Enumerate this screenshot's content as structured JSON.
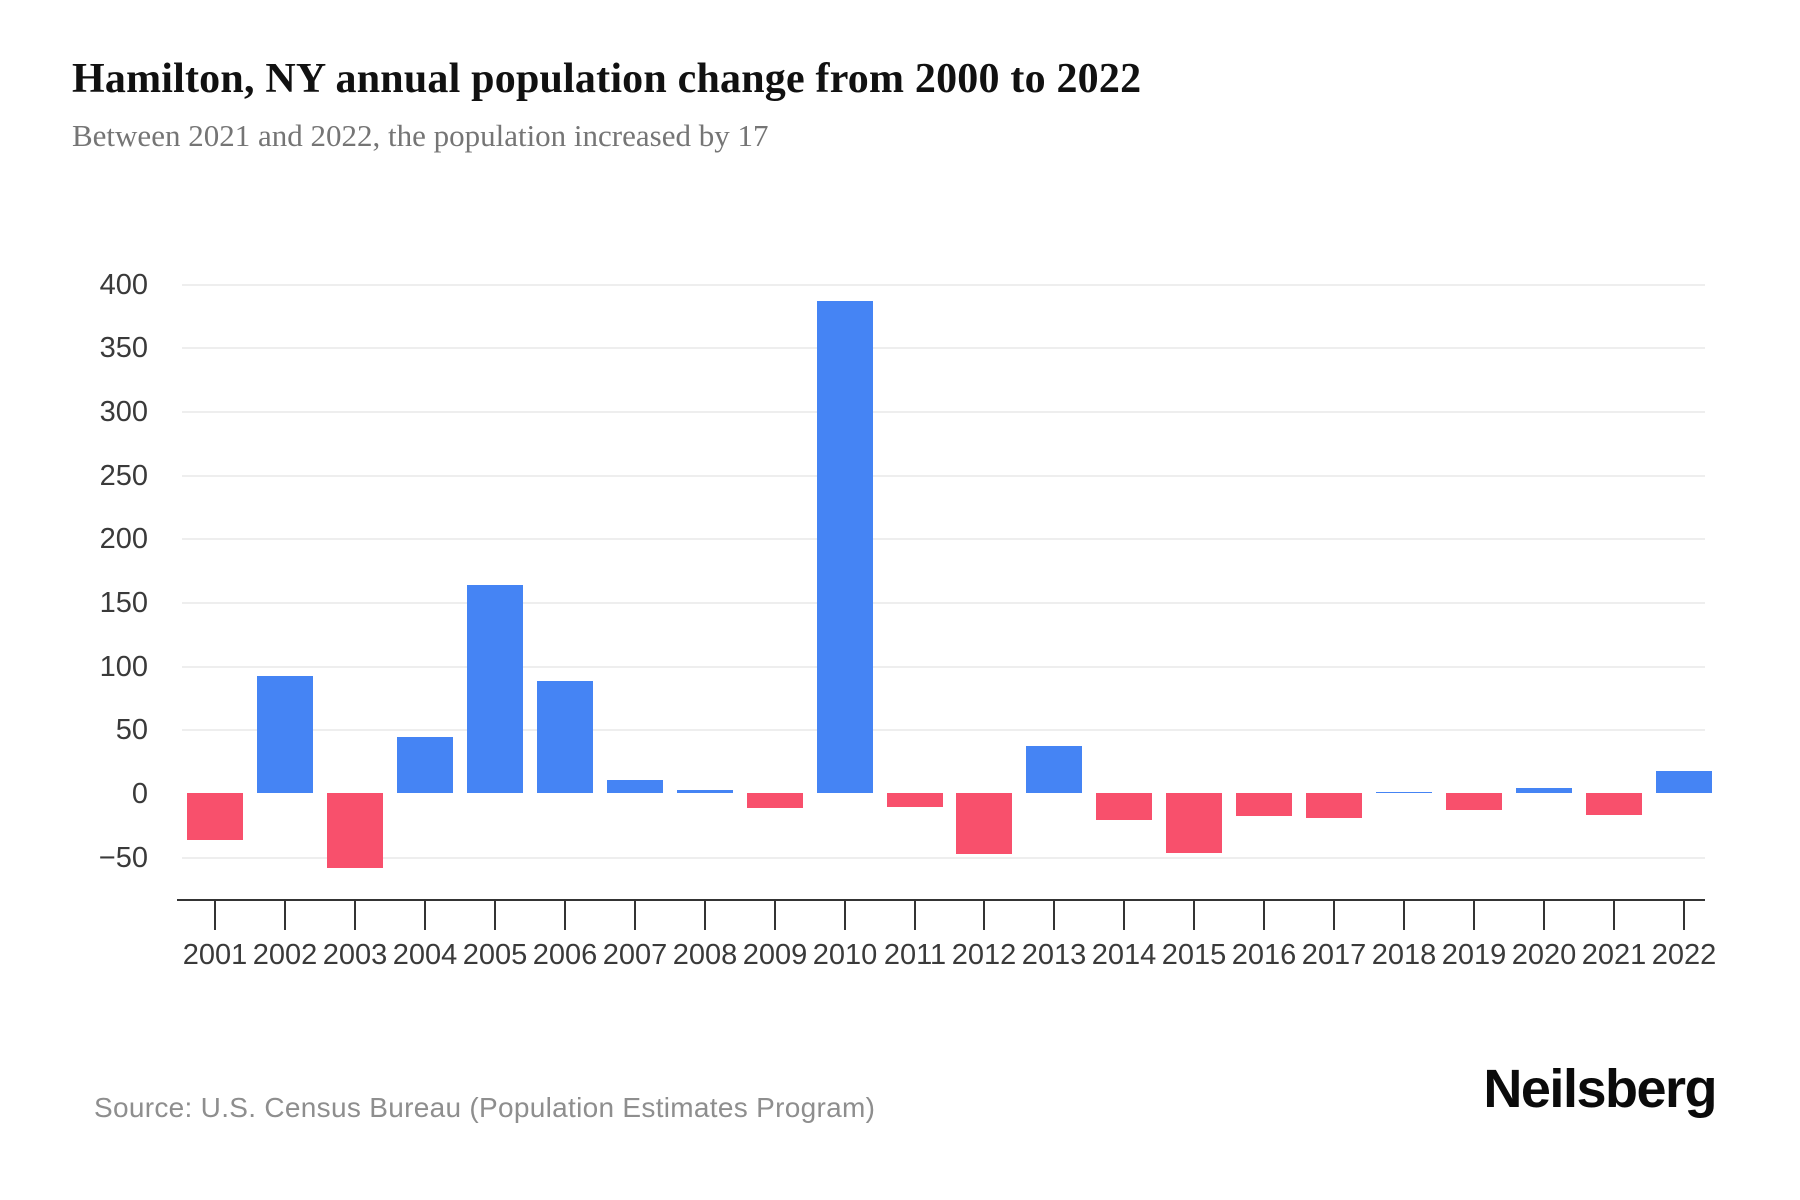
{
  "header": {
    "title": "Hamilton, NY annual population change from 2000 to 2022",
    "subtitle": "Between 2021 and 2022, the population increased by 17"
  },
  "chart_data": {
    "type": "bar",
    "title": "Hamilton, NY annual population change from 2000 to 2022",
    "subtitle": "Between 2021 and 2022, the population increased by 17",
    "categories": [
      "2001",
      "2002",
      "2003",
      "2004",
      "2005",
      "2006",
      "2007",
      "2008",
      "2009",
      "2010",
      "2011",
      "2012",
      "2013",
      "2014",
      "2015",
      "2016",
      "2017",
      "2018",
      "2019",
      "2020",
      "2021",
      "2022"
    ],
    "values": [
      -37,
      92,
      -59,
      44,
      163,
      88,
      10,
      2,
      -12,
      386,
      -11,
      -48,
      37,
      -21,
      -47,
      -18,
      -20,
      1,
      -13,
      4,
      -17,
      17
    ],
    "xlabel": "",
    "ylabel": "",
    "ylim": [
      -75,
      430
    ],
    "yticks": [
      400,
      350,
      300,
      250,
      200,
      150,
      100,
      50,
      0,
      -50
    ],
    "gridline_values": [
      400,
      350,
      300,
      250,
      200,
      150,
      100,
      50,
      -50
    ],
    "grid": true,
    "legend_position": "none",
    "colors": {
      "positive_bar": "#4584f4",
      "negative_bar": "#f8506c",
      "gridline": "#eeeeee",
      "axis": "#343434",
      "tick_label": "#3a3a3a"
    }
  },
  "footer": {
    "source": "Source: U.S. Census Bureau (Population Estimates Program)",
    "brand": "Neilsberg"
  }
}
